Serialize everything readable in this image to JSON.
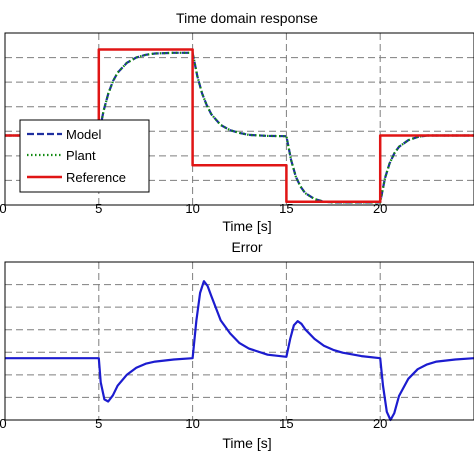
{
  "chart_data": [
    {
      "type": "line",
      "title": "Time domain response",
      "xlabel": "Time [s]",
      "ylabel": "",
      "xlim": [
        0,
        25
      ],
      "ylim": [
        -1.05,
        1.55
      ],
      "xticks": [
        0,
        5,
        10,
        15,
        20
      ],
      "grid": true,
      "legend_position": "bottom-left",
      "series": [
        {
          "name": "Model",
          "color": "#1f2f9f",
          "style": "dashed",
          "x": [
            0,
            5,
            5.25,
            5.5,
            5.75,
            6,
            6.5,
            7,
            7.5,
            8,
            9,
            10,
            10.25,
            10.5,
            10.75,
            11,
            11.5,
            12,
            12.5,
            13,
            14,
            15,
            15.25,
            15.5,
            15.75,
            16,
            16.5,
            17,
            17.5,
            18,
            19,
            20,
            20.25,
            20.5,
            20.75,
            21,
            21.5,
            22,
            22.5,
            23,
            24,
            25
          ],
          "y": [
            0,
            0,
            0.37,
            0.63,
            0.82,
            0.95,
            1.1,
            1.18,
            1.22,
            1.24,
            1.25,
            1.25,
            0.9,
            0.64,
            0.46,
            0.32,
            0.16,
            0.08,
            0.04,
            0.01,
            -0.005,
            -0.01,
            -0.37,
            -0.62,
            -0.77,
            -0.87,
            -0.96,
            -1.0,
            -1.01,
            -1.01,
            -1.01,
            -1.01,
            -0.65,
            -0.42,
            -0.27,
            -0.17,
            -0.07,
            -0.02,
            0.0,
            0.0,
            0.0,
            0.0
          ]
        },
        {
          "name": "Plant",
          "color": "#108a10",
          "style": "dotted",
          "x": [
            0,
            5,
            5.25,
            5.5,
            5.75,
            6,
            6.5,
            7,
            7.5,
            8,
            9,
            10,
            10.25,
            10.5,
            10.75,
            11,
            11.5,
            12,
            12.5,
            13,
            14,
            15,
            15.25,
            15.5,
            15.75,
            16,
            16.5,
            17,
            17.5,
            18,
            19,
            20,
            20.25,
            20.5,
            20.75,
            21,
            21.5,
            22,
            22.5,
            23,
            24,
            25
          ],
          "y": [
            0,
            0,
            0.37,
            0.63,
            0.82,
            0.95,
            1.1,
            1.18,
            1.22,
            1.24,
            1.25,
            1.25,
            0.9,
            0.64,
            0.46,
            0.32,
            0.16,
            0.08,
            0.04,
            0.01,
            -0.005,
            -0.01,
            -0.37,
            -0.62,
            -0.77,
            -0.87,
            -0.96,
            -1.0,
            -1.01,
            -1.01,
            -1.01,
            -1.01,
            -0.65,
            -0.42,
            -0.27,
            -0.17,
            -0.07,
            -0.02,
            0.0,
            0.0,
            0.0,
            0.0
          ]
        },
        {
          "name": "Reference",
          "color": "#e01515",
          "style": "solid",
          "x": [
            0,
            5,
            5,
            10,
            10,
            15,
            15,
            20,
            20,
            25
          ],
          "y": [
            0,
            0,
            1.3,
            1.3,
            -0.45,
            -0.45,
            -1.0,
            -1.0,
            0,
            0
          ]
        }
      ]
    },
    {
      "type": "line",
      "title": "Error",
      "xlabel": "Time [s]",
      "ylabel": "",
      "xlim": [
        0,
        25
      ],
      "ylim": [
        -0.9,
        1.4
      ],
      "xticks": [
        0,
        5,
        10,
        15,
        20
      ],
      "grid": true,
      "series": [
        {
          "name": "",
          "color": "#1c1ccf",
          "style": "solid",
          "x": [
            0,
            5,
            5.1,
            5.3,
            5.5,
            5.75,
            6,
            6.5,
            7,
            7.5,
            8,
            9,
            10,
            10.2,
            10.4,
            10.6,
            10.8,
            11,
            11.5,
            12,
            12.5,
            13,
            14,
            15,
            15.2,
            15.4,
            15.6,
            15.8,
            16,
            16.5,
            17,
            17.5,
            18,
            19,
            20,
            20.15,
            20.35,
            20.55,
            20.75,
            21,
            21.5,
            22,
            22.5,
            23,
            24,
            25
          ],
          "y": [
            0,
            0,
            -0.35,
            -0.6,
            -0.63,
            -0.54,
            -0.4,
            -0.24,
            -0.14,
            -0.08,
            -0.05,
            -0.02,
            0,
            0.55,
            0.95,
            1.12,
            1.05,
            0.9,
            0.55,
            0.36,
            0.22,
            0.14,
            0.05,
            0.02,
            0.28,
            0.48,
            0.54,
            0.5,
            0.42,
            0.28,
            0.18,
            0.12,
            0.08,
            0.03,
            0,
            -0.4,
            -0.78,
            -0.9,
            -0.8,
            -0.55,
            -0.3,
            -0.16,
            -0.09,
            -0.05,
            -0.02,
            0
          ]
        }
      ]
    }
  ]
}
